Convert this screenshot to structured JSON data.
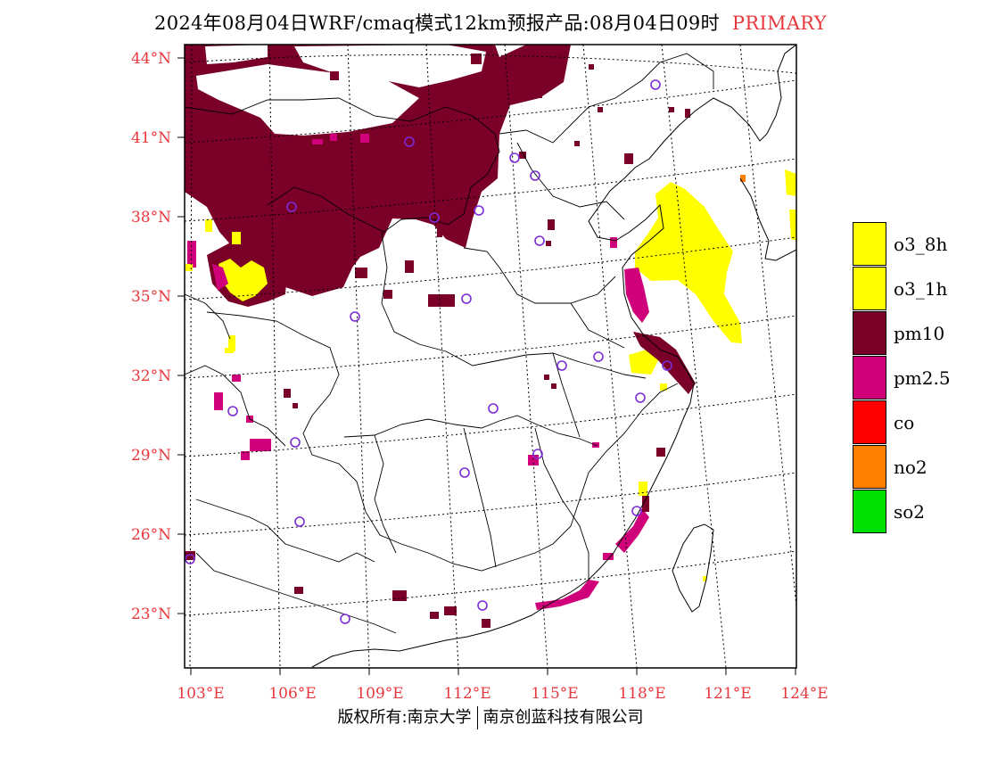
{
  "header": {
    "title": "2024年08月04日WRF/cmaq模式12km预报产品:08月04日09时",
    "primary_label": "PRIMARY",
    "primary_color": "#e8383d"
  },
  "axes": {
    "latitudes": [
      "44°N",
      "41°N",
      "38°N",
      "35°N",
      "32°N",
      "29°N",
      "26°N",
      "23°N"
    ],
    "longitudes": [
      "103°E",
      "106°E",
      "109°E",
      "112°E",
      "115°E",
      "118°E",
      "121°E",
      "124°E"
    ],
    "tick_label_color": "#e8383d"
  },
  "legend": {
    "items": [
      {
        "label": "o3_8h",
        "color": "#ffff00"
      },
      {
        "label": "o3_1h",
        "color": "#ffff00"
      },
      {
        "label": "pm10",
        "color": "#7a0028"
      },
      {
        "label": "pm2.5",
        "color": "#d0007a"
      },
      {
        "label": "co",
        "color": "#ff0000"
      },
      {
        "label": "no2",
        "color": "#ff8000"
      },
      {
        "label": "so2",
        "color": "#00e000"
      }
    ]
  },
  "footer": {
    "left": "版权所有:南京大学",
    "right": "南京创蓝科技有限公司"
  }
}
